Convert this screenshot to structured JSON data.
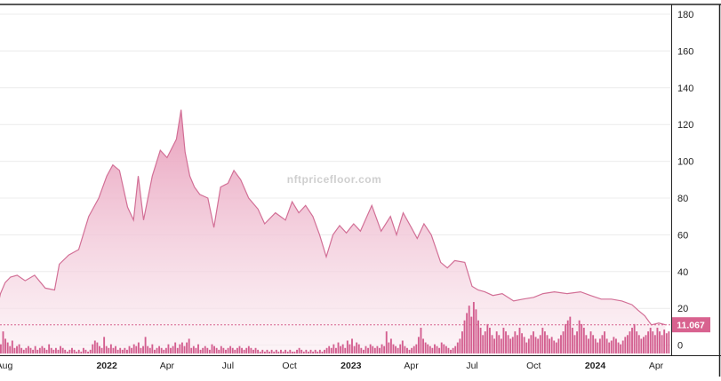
{
  "watermark": "nftpricefloor.com",
  "colors": {
    "line": "#d26f96",
    "area_top": "#e79ab8",
    "area_bottom": "#fbeef3",
    "volume": "#d35e8f",
    "price_label_bg": "#d8628f",
    "grid": "#ececec",
    "frame": "#222222"
  },
  "chart_data": {
    "type": "area",
    "title": "",
    "xlabel": "",
    "ylabel": "",
    "ylim": [
      -10,
      180
    ],
    "y_ticks": [
      "180",
      "160",
      "140",
      "120",
      "100",
      "80",
      "60",
      "40",
      "20",
      "0"
    ],
    "grid": true,
    "x_ticks": [
      {
        "label": "Aug",
        "date": "2021-08-01",
        "bold": false
      },
      {
        "label": "2022",
        "date": "2022-01-01",
        "bold": true
      },
      {
        "label": "Apr",
        "date": "2022-04-01",
        "bold": false
      },
      {
        "label": "Jul",
        "date": "2022-07-01",
        "bold": false
      },
      {
        "label": "Oct",
        "date": "2022-10-01",
        "bold": false
      },
      {
        "label": "2023",
        "date": "2023-01-01",
        "bold": true
      },
      {
        "label": "Apr",
        "date": "2023-04-01",
        "bold": false
      },
      {
        "label": "Jul",
        "date": "2023-07-01",
        "bold": false
      },
      {
        "label": "Oct",
        "date": "2023-10-01",
        "bold": false
      },
      {
        "label": "2024",
        "date": "2024-01-01",
        "bold": true
      },
      {
        "label": "Apr",
        "date": "2024-04-01",
        "bold": false
      }
    ],
    "current_value": 11.067,
    "current_value_label": "11.067",
    "series": [
      {
        "type": "area",
        "points": [
          [
            "2021-07-20",
            18
          ],
          [
            "2021-07-26",
            28
          ],
          [
            "2021-08-02",
            34
          ],
          [
            "2021-08-10",
            37
          ],
          [
            "2021-08-20",
            38
          ],
          [
            "2021-09-01",
            35
          ],
          [
            "2021-09-15",
            38
          ],
          [
            "2021-10-01",
            31
          ],
          [
            "2021-10-15",
            30
          ],
          [
            "2021-10-22",
            44
          ],
          [
            "2021-11-05",
            49
          ],
          [
            "2021-11-20",
            52
          ],
          [
            "2021-12-05",
            70
          ],
          [
            "2021-12-20",
            80
          ],
          [
            "2022-01-01",
            92
          ],
          [
            "2022-01-10",
            98
          ],
          [
            "2022-01-20",
            95
          ],
          [
            "2022-02-01",
            75
          ],
          [
            "2022-02-10",
            68
          ],
          [
            "2022-02-17",
            92
          ],
          [
            "2022-02-25",
            68
          ],
          [
            "2022-03-10",
            92
          ],
          [
            "2022-03-22",
            106
          ],
          [
            "2022-04-01",
            102
          ],
          [
            "2022-04-15",
            112
          ],
          [
            "2022-04-22",
            128
          ],
          [
            "2022-04-28",
            105
          ],
          [
            "2022-05-05",
            92
          ],
          [
            "2022-05-12",
            86
          ],
          [
            "2022-05-20",
            82
          ],
          [
            "2022-06-01",
            80
          ],
          [
            "2022-06-10",
            64
          ],
          [
            "2022-06-20",
            86
          ],
          [
            "2022-07-01",
            88
          ],
          [
            "2022-07-10",
            95
          ],
          [
            "2022-07-20",
            90
          ],
          [
            "2022-08-01",
            80
          ],
          [
            "2022-08-15",
            74
          ],
          [
            "2022-08-25",
            66
          ],
          [
            "2022-09-10",
            72
          ],
          [
            "2022-09-25",
            68
          ],
          [
            "2022-10-05",
            78
          ],
          [
            "2022-10-15",
            72
          ],
          [
            "2022-10-25",
            76
          ],
          [
            "2022-11-05",
            70
          ],
          [
            "2022-11-15",
            60
          ],
          [
            "2022-11-25",
            48
          ],
          [
            "2022-12-05",
            60
          ],
          [
            "2022-12-15",
            65
          ],
          [
            "2022-12-25",
            61
          ],
          [
            "2023-01-05",
            66
          ],
          [
            "2023-01-15",
            62
          ],
          [
            "2023-02-01",
            76
          ],
          [
            "2023-02-15",
            62
          ],
          [
            "2023-03-01",
            70
          ],
          [
            "2023-03-10",
            60
          ],
          [
            "2023-03-20",
            72
          ],
          [
            "2023-04-01",
            64
          ],
          [
            "2023-04-10",
            58
          ],
          [
            "2023-04-20",
            66
          ],
          [
            "2023-05-01",
            60
          ],
          [
            "2023-05-15",
            45
          ],
          [
            "2023-05-25",
            42
          ],
          [
            "2023-06-05",
            46
          ],
          [
            "2023-06-20",
            45
          ],
          [
            "2023-07-01",
            32
          ],
          [
            "2023-07-10",
            30
          ],
          [
            "2023-07-20",
            29
          ],
          [
            "2023-08-01",
            27
          ],
          [
            "2023-08-15",
            28
          ],
          [
            "2023-09-01",
            24
          ],
          [
            "2023-09-15",
            25
          ],
          [
            "2023-10-01",
            26
          ],
          [
            "2023-10-15",
            28
          ],
          [
            "2023-11-01",
            29
          ],
          [
            "2023-11-20",
            28
          ],
          [
            "2023-12-10",
            29
          ],
          [
            "2023-12-25",
            27
          ],
          [
            "2024-01-10",
            25
          ],
          [
            "2024-01-25",
            25
          ],
          [
            "2024-02-10",
            24
          ],
          [
            "2024-02-25",
            22
          ],
          [
            "2024-03-05",
            19
          ],
          [
            "2024-03-15",
            16
          ],
          [
            "2024-03-25",
            11
          ],
          [
            "2024-04-05",
            12
          ],
          [
            "2024-04-15",
            11.067
          ]
        ]
      },
      {
        "type": "bar",
        "values": [
          5,
          12,
          8,
          6,
          4,
          7,
          3,
          4,
          5,
          3,
          2,
          3,
          4,
          3,
          2,
          4,
          2,
          3,
          4,
          3,
          2,
          5,
          3,
          2,
          3,
          2,
          4,
          3,
          2,
          1,
          2,
          3,
          2,
          1,
          2,
          1,
          3,
          2,
          1,
          2,
          5,
          7,
          6,
          4,
          3,
          9,
          4,
          3,
          5,
          3,
          4,
          2,
          3,
          2,
          3,
          2,
          4,
          3,
          5,
          4,
          6,
          3,
          4,
          9,
          4,
          3,
          5,
          2,
          3,
          4,
          3,
          2,
          3,
          5,
          3,
          4,
          6,
          3,
          5,
          6,
          4,
          6,
          8,
          3,
          4,
          3,
          5,
          2,
          3,
          4,
          3,
          2,
          5,
          4,
          3,
          2,
          4,
          3,
          2,
          3,
          4,
          3,
          2,
          3,
          4,
          3,
          2,
          3,
          4,
          3,
          2,
          3,
          2,
          1,
          2,
          1,
          2,
          1,
          2,
          1,
          2,
          1,
          2,
          1,
          2,
          1,
          2,
          1,
          1,
          2,
          3,
          2,
          1,
          2,
          1,
          2,
          1,
          2,
          1,
          2,
          1,
          2,
          3,
          4,
          3,
          5,
          3,
          6,
          4,
          5,
          3,
          7,
          5,
          8,
          4,
          6,
          5,
          3,
          2,
          4,
          3,
          5,
          4,
          3,
          4,
          3,
          5,
          4,
          12,
          6,
          8,
          5,
          4,
          3,
          5,
          7,
          4,
          3,
          2,
          3,
          4,
          5,
          9,
          14,
          8,
          6,
          5,
          4,
          3,
          5,
          4,
          3,
          6,
          5,
          4,
          3,
          2,
          3,
          4,
          6,
          8,
          12,
          18,
          22,
          26,
          20,
          28,
          24,
          18,
          14,
          10,
          12,
          16,
          14,
          10,
          8,
          12,
          10,
          8,
          14,
          12,
          10,
          8,
          9,
          12,
          10,
          14,
          11,
          9,
          6,
          8,
          10,
          12,
          9,
          8,
          10,
          14,
          12,
          10,
          8,
          9,
          7,
          6,
          8,
          10,
          12,
          16,
          18,
          20,
          14,
          10,
          12,
          18,
          16,
          14,
          10,
          8,
          12,
          10,
          8,
          6,
          8,
          10,
          12,
          8,
          6,
          7,
          9,
          8,
          6,
          5,
          7,
          9,
          10,
          12,
          14,
          16,
          12,
          10,
          8,
          9,
          10,
          12,
          14,
          12,
          10,
          14,
          12,
          10,
          13,
          11,
          12
        ]
      }
    ]
  }
}
